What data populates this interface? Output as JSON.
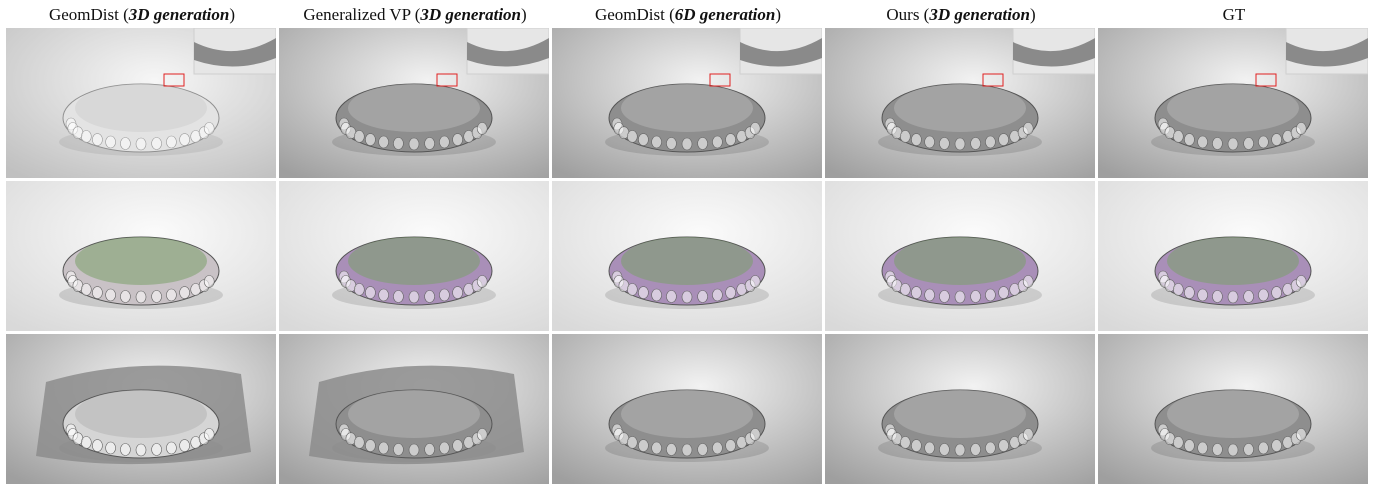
{
  "figure": {
    "columns": [
      {
        "name": "geomdist-3d",
        "pre": "GeomDist (",
        "emph": "3D generation",
        "post": ")"
      },
      {
        "name": "generalized-vp-3d",
        "pre": "Generalized VP (",
        "emph": "3D generation",
        "post": ")"
      },
      {
        "name": "geomdist-6d",
        "pre": "GeomDist (",
        "emph": "6D generation",
        "post": ")"
      },
      {
        "name": "ours-3d",
        "pre": "Ours (",
        "emph": "3D generation",
        "post": ")"
      },
      {
        "name": "gt",
        "pre": "GT",
        "emph": "",
        "post": ""
      }
    ],
    "rows": [
      {
        "name": "open-bangle-gray"
      },
      {
        "name": "bangle-normal-colored"
      },
      {
        "name": "bangle-gray"
      }
    ]
  }
}
